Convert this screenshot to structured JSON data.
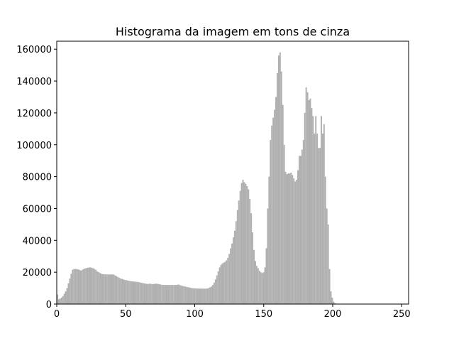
{
  "chart_data": {
    "type": "bar",
    "title": "Histograma da imagem em tons de cinza",
    "xlabel": "",
    "ylabel": "",
    "xlim": [
      0,
      255
    ],
    "ylim": [
      0,
      165000
    ],
    "xticks": [
      0,
      50,
      100,
      150,
      200,
      250
    ],
    "yticks": [
      0,
      20000,
      40000,
      60000,
      80000,
      100000,
      120000,
      140000,
      160000
    ],
    "grid": false,
    "bar_color": "#b0b0b0",
    "bins": 256,
    "values": [
      6000,
      3000,
      3500,
      4000,
      5000,
      6500,
      8000,
      10000,
      13000,
      16000,
      19000,
      21500,
      22000,
      22000,
      22000,
      21800,
      21500,
      21000,
      21500,
      22000,
      22300,
      22600,
      22800,
      23000,
      23000,
      22800,
      22500,
      22000,
      21500,
      20500,
      20000,
      19500,
      19000,
      18800,
      18700,
      18600,
      18600,
      18600,
      18600,
      18600,
      18600,
      18500,
      18000,
      17500,
      17000,
      16500,
      16000,
      15800,
      15500,
      15200,
      15000,
      14800,
      14600,
      14400,
      14300,
      14200,
      14100,
      14000,
      13900,
      13800,
      13600,
      13400,
      13200,
      13000,
      12800,
      12700,
      12600,
      12800,
      12700,
      12500,
      12600,
      12700,
      12800,
      12700,
      12500,
      12300,
      12100,
      12000,
      12000,
      12000,
      12000,
      12000,
      12000,
      12000,
      12000,
      12000,
      12000,
      12000,
      12300,
      12000,
      11600,
      11400,
      11200,
      11000,
      10800,
      10600,
      10400,
      10200,
      10000,
      9900,
      9800,
      9800,
      9700,
      9700,
      9700,
      9700,
      9700,
      9700,
      9700,
      9800,
      10000,
      10500,
      11000,
      12000,
      13500,
      15500,
      18000,
      20500,
      23000,
      24500,
      25500,
      26000,
      26500,
      27500,
      29000,
      31500,
      35000,
      38000,
      42000,
      46000,
      52000,
      59000,
      65000,
      71000,
      76000,
      78000,
      76500,
      75500,
      74000,
      72000,
      66000,
      57000,
      45000,
      34000,
      27000,
      24000,
      22500,
      21000,
      20000,
      19500,
      20000,
      23000,
      35000,
      60000,
      80000,
      103000,
      112000,
      117000,
      122000,
      130000,
      145000,
      156000,
      158000,
      146000,
      125000,
      100000,
      83000,
      81500,
      82000,
      82000,
      82500,
      81000,
      79000,
      77000,
      78000,
      84000,
      93000,
      93000,
      97000,
      103000,
      120000,
      136000,
      133000,
      128000,
      129000,
      123000,
      118000,
      107000,
      118000,
      107000,
      98000,
      98000,
      118000,
      107000,
      113000,
      80000,
      60000,
      50000,
      22000,
      8000,
      4000,
      1500,
      500,
      0,
      0,
      0,
      0,
      0,
      0,
      0,
      0,
      0,
      0,
      0,
      0,
      0,
      0,
      0,
      0,
      0,
      0,
      0,
      0,
      0,
      0,
      0,
      0,
      0,
      0,
      0,
      0,
      0,
      0,
      0,
      0,
      0,
      0,
      0,
      0,
      0,
      0,
      0,
      0,
      0,
      0,
      0,
      0,
      0,
      0,
      0,
      0,
      0,
      0,
      0,
      0,
      0,
      0,
      0,
      0,
      0,
      0,
      0,
      0,
      0,
      0,
      0,
      0,
      0,
      0,
      0,
      0
    ]
  }
}
